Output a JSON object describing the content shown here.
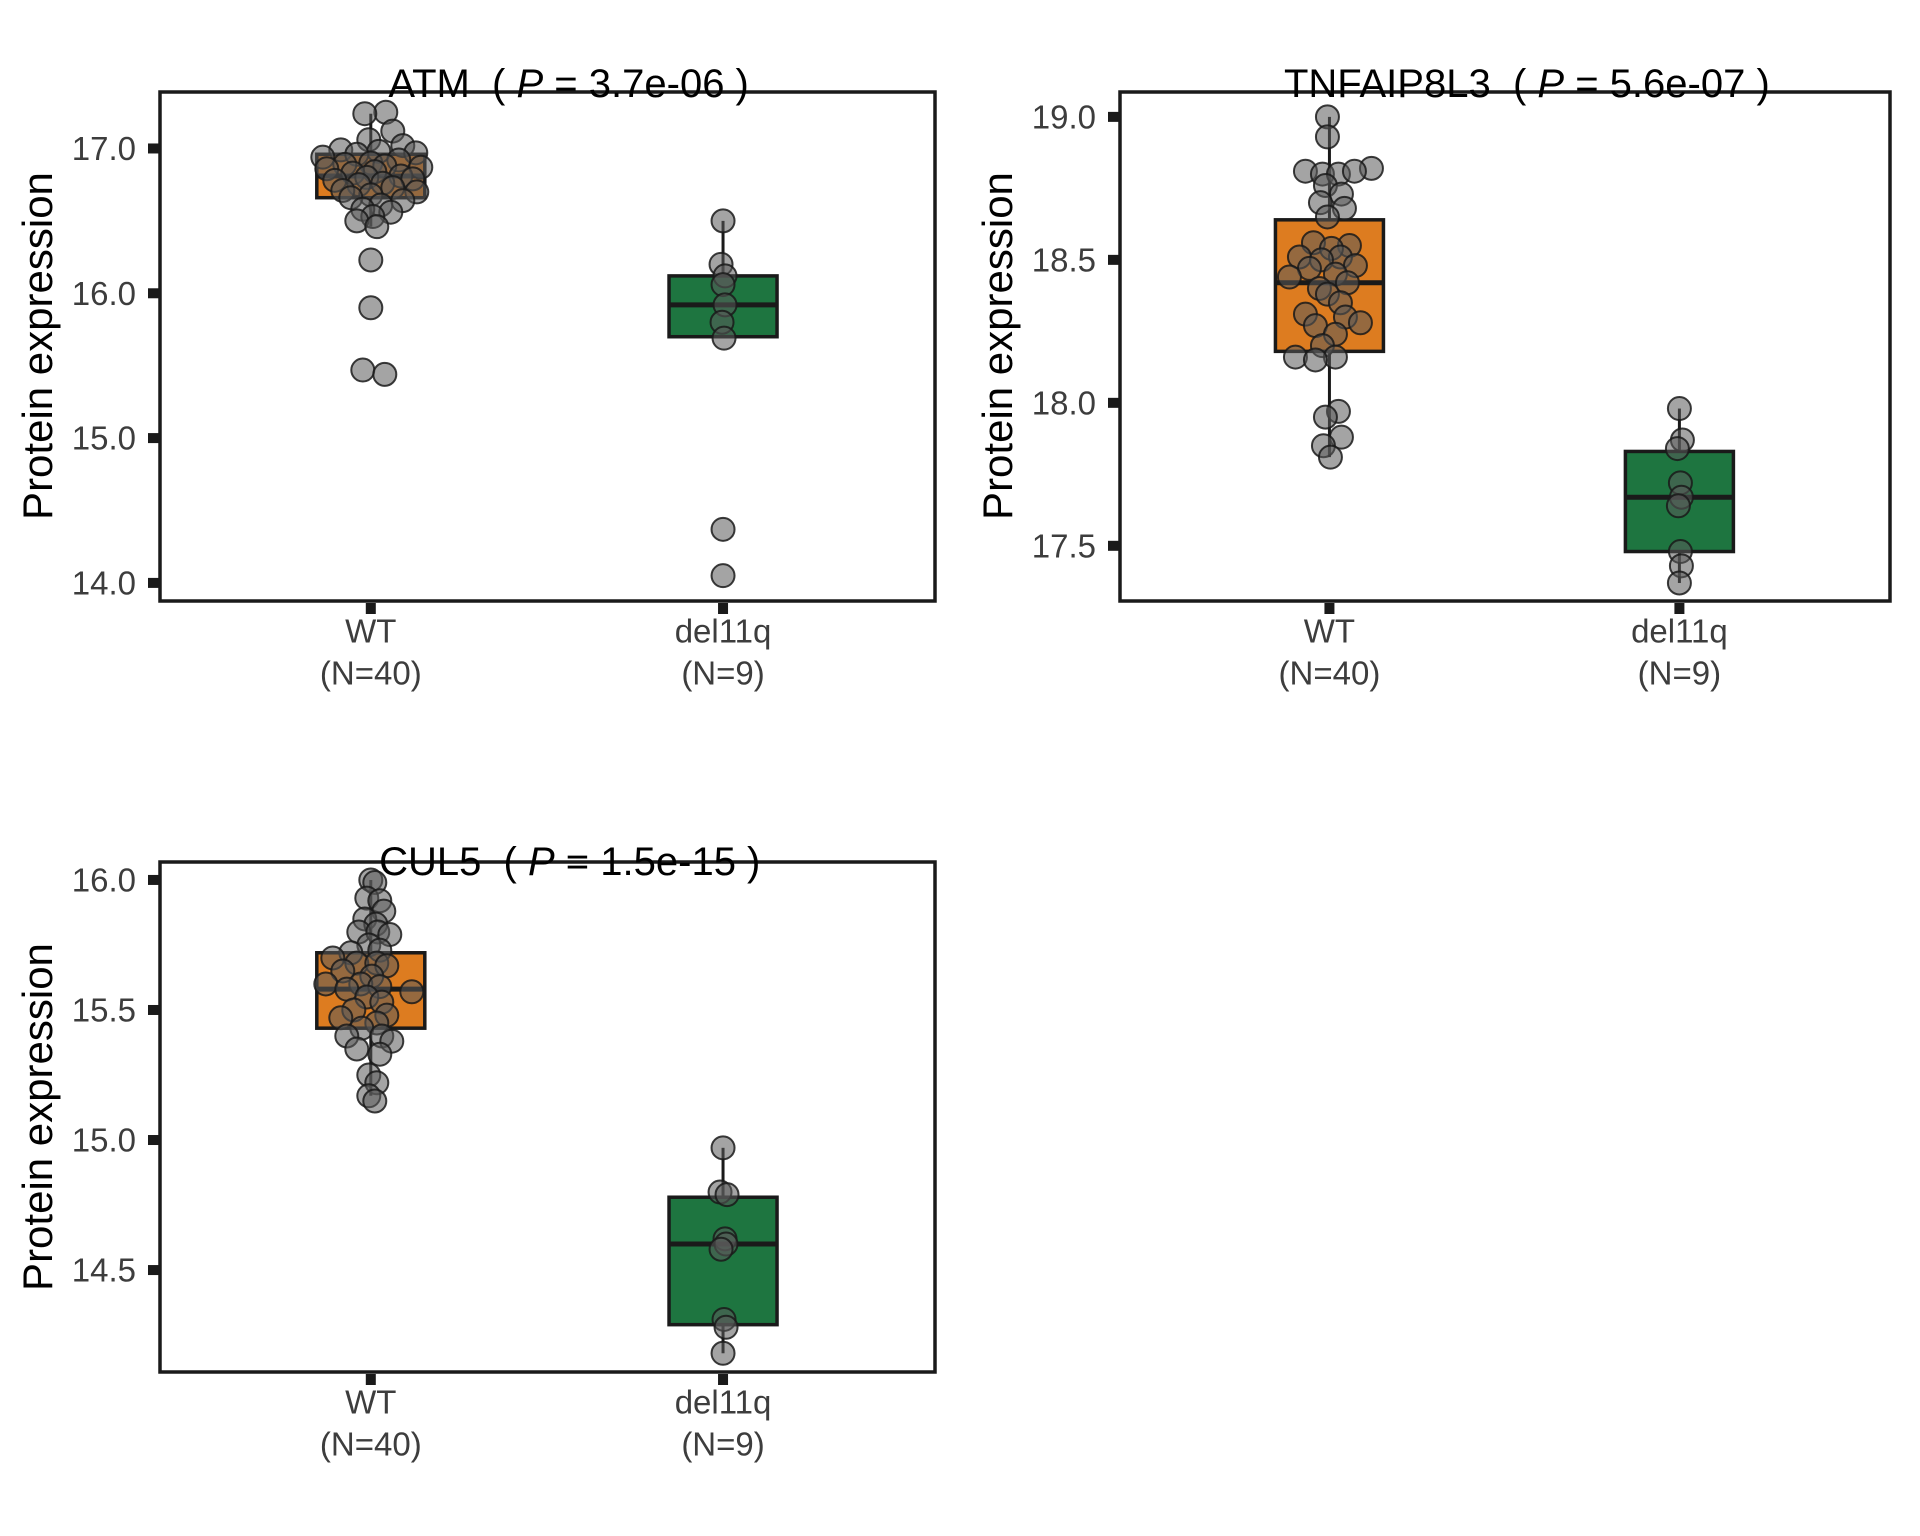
{
  "figure": {
    "background": "#FFFFFF"
  },
  "palette": {
    "wt_box": "#DD7C20",
    "del11q_box": "#1E7540",
    "box_stroke": "#1A1A1A",
    "median_stroke": "#1A1A1A",
    "whisker_stroke": "#1A1A1A",
    "point_fill": "#5A5A5A",
    "point_stroke": "#1A1A1A",
    "tick_text": "#3D3D3D",
    "title_text": "#000000",
    "panel_border": "#1A1A1A"
  },
  "chart_data": [
    {
      "type": "box",
      "title": {
        "gene": "ATM",
        "sep": "  ( ",
        "p_symbol": "P",
        "p_rest": " = 3.7e-06 )"
      },
      "ylabel": "Protein expression",
      "ylim": [
        13.875,
        17.39
      ],
      "grid": false,
      "yticks": [
        {
          "value": 17.0,
          "label": "17.0"
        },
        {
          "value": 16.0,
          "label": "16.0"
        },
        {
          "value": 15.0,
          "label": "15.0"
        },
        {
          "value": 14.0,
          "label": "14.0"
        }
      ],
      "groups": [
        {
          "label": "WT",
          "n_label": "(N=40)",
          "color_key": "wt_box",
          "box": {
            "whisker_low": 16.46,
            "q1": 16.66,
            "median": 16.81,
            "q3": 16.96,
            "whisker_high": 17.24
          },
          "points": [
            [
              17.25,
              15
            ],
            [
              17.24,
              -6
            ],
            [
              17.12,
              22
            ],
            [
              17.06,
              -2
            ],
            [
              17.02,
              32
            ],
            [
              16.99,
              -30
            ],
            [
              16.98,
              8
            ],
            [
              16.97,
              45
            ],
            [
              16.96,
              -14
            ],
            [
              16.94,
              -48
            ],
            [
              16.92,
              28
            ],
            [
              16.9,
              0
            ],
            [
              16.89,
              -26
            ],
            [
              16.88,
              14
            ],
            [
              16.87,
              50
            ],
            [
              16.86,
              -44
            ],
            [
              16.84,
              4
            ],
            [
              16.83,
              -18
            ],
            [
              16.81,
              30
            ],
            [
              16.8,
              -4
            ],
            [
              16.79,
              42
            ],
            [
              16.78,
              -36
            ],
            [
              16.76,
              12
            ],
            [
              16.75,
              -12
            ],
            [
              16.73,
              22
            ],
            [
              16.71,
              -28
            ],
            [
              16.7,
              46
            ],
            [
              16.68,
              0
            ],
            [
              16.66,
              -20
            ],
            [
              16.64,
              32
            ],
            [
              16.61,
              10
            ],
            [
              16.58,
              -8
            ],
            [
              16.56,
              20
            ],
            [
              16.53,
              2
            ],
            [
              16.5,
              -14
            ],
            [
              16.46,
              6
            ],
            [
              16.23,
              0
            ],
            [
              15.9,
              0
            ],
            [
              15.47,
              -8
            ],
            [
              15.44,
              14
            ]
          ]
        },
        {
          "label": "del11q",
          "n_label": "(N=9)",
          "color_key": "del11q_box",
          "box": {
            "whisker_low": 15.69,
            "q1": 15.7,
            "median": 15.92,
            "q3": 16.12,
            "whisker_high": 16.5
          },
          "points": [
            [
              16.5,
              0
            ],
            [
              16.2,
              -2
            ],
            [
              16.12,
              2
            ],
            [
              16.06,
              0
            ],
            [
              15.92,
              2
            ],
            [
              15.8,
              -1
            ],
            [
              15.69,
              1
            ],
            [
              14.37,
              0
            ],
            [
              14.05,
              0
            ]
          ]
        }
      ]
    },
    {
      "type": "box",
      "title": {
        "gene": "TNFAIP8L3",
        "sep": "  ( ",
        "p_symbol": "P",
        "p_rest": " = 5.6e-07 )"
      },
      "ylabel": "Protein expression",
      "ylim": [
        17.307,
        19.087
      ],
      "grid": false,
      "yticks": [
        {
          "value": 19.0,
          "label": "19.0"
        },
        {
          "value": 18.5,
          "label": "18.5"
        },
        {
          "value": 18.0,
          "label": "18.0"
        },
        {
          "value": 17.5,
          "label": "17.5"
        }
      ],
      "groups": [
        {
          "label": "WT",
          "n_label": "(N=40)",
          "color_key": "wt_box",
          "box": {
            "whisker_low": 17.81,
            "q1": 18.18,
            "median": 18.42,
            "q3": 18.64,
            "whisker_high": 19.0
          },
          "points": [
            [
              19.0,
              -2
            ],
            [
              18.93,
              -2
            ],
            [
              18.82,
              42
            ],
            [
              18.81,
              -24
            ],
            [
              18.8,
              -7
            ],
            [
              18.8,
              9
            ],
            [
              18.81,
              25
            ],
            [
              18.76,
              -4
            ],
            [
              18.73,
              12
            ],
            [
              18.7,
              -9
            ],
            [
              18.68,
              15
            ],
            [
              18.65,
              -2
            ],
            [
              18.56,
              -16
            ],
            [
              18.55,
              20
            ],
            [
              18.54,
              2
            ],
            [
              18.51,
              -30
            ],
            [
              18.51,
              11
            ],
            [
              18.5,
              -8
            ],
            [
              18.48,
              26
            ],
            [
              18.47,
              -20
            ],
            [
              18.45,
              6
            ],
            [
              18.44,
              -40
            ],
            [
              18.42,
              18
            ],
            [
              18.4,
              -10
            ],
            [
              18.38,
              -2
            ],
            [
              18.35,
              11
            ],
            [
              18.31,
              -24
            ],
            [
              18.3,
              16
            ],
            [
              18.28,
              31
            ],
            [
              18.27,
              -14
            ],
            [
              18.24,
              6
            ],
            [
              18.2,
              -7
            ],
            [
              18.16,
              -34
            ],
            [
              18.16,
              6
            ],
            [
              18.15,
              -14
            ],
            [
              17.97,
              9
            ],
            [
              17.95,
              -4
            ],
            [
              17.88,
              12
            ],
            [
              17.85,
              -6
            ],
            [
              17.81,
              1
            ]
          ]
        },
        {
          "label": "del11q",
          "n_label": "(N=9)",
          "color_key": "del11q_box",
          "box": {
            "whisker_low": 17.37,
            "q1": 17.48,
            "median": 17.67,
            "q3": 17.83,
            "whisker_high": 17.98
          },
          "points": [
            [
              17.98,
              0
            ],
            [
              17.87,
              3
            ],
            [
              17.84,
              -2
            ],
            [
              17.72,
              1
            ],
            [
              17.67,
              2
            ],
            [
              17.64,
              -1
            ],
            [
              17.48,
              1
            ],
            [
              17.43,
              2
            ],
            [
              17.37,
              0
            ]
          ]
        }
      ]
    },
    {
      "type": "box",
      "title": {
        "gene": "CUL5",
        "sep": "  ( ",
        "p_symbol": "P",
        "p_rest": " = 1.5e-15 )"
      },
      "ylabel": "Protein expression",
      "ylim": [
        14.108,
        16.069
      ],
      "grid": false,
      "yticks": [
        {
          "value": 16.0,
          "label": "16.0"
        },
        {
          "value": 15.5,
          "label": "15.5"
        },
        {
          "value": 15.0,
          "label": "15.0"
        },
        {
          "value": 14.5,
          "label": "14.5"
        }
      ],
      "groups": [
        {
          "label": "WT",
          "n_label": "(N=40)",
          "color_key": "wt_box",
          "box": {
            "whisker_low": 15.17,
            "q1": 15.43,
            "median": 15.58,
            "q3": 15.72,
            "whisker_high": 16.0
          },
          "points": [
            [
              16.0,
              0
            ],
            [
              15.99,
              4
            ],
            [
              15.93,
              -4
            ],
            [
              15.92,
              9
            ],
            [
              15.88,
              13
            ],
            [
              15.85,
              -6
            ],
            [
              15.83,
              5
            ],
            [
              15.8,
              -12
            ],
            [
              15.8,
              7
            ],
            [
              15.79,
              19
            ],
            [
              15.75,
              -2
            ],
            [
              15.73,
              9
            ],
            [
              15.72,
              -20
            ],
            [
              15.7,
              -38
            ],
            [
              15.68,
              -14
            ],
            [
              15.68,
              6
            ],
            [
              15.67,
              16
            ],
            [
              15.65,
              -28
            ],
            [
              15.63,
              1
            ],
            [
              15.6,
              -45
            ],
            [
              15.6,
              -10
            ],
            [
              15.59,
              9
            ],
            [
              15.58,
              -24
            ],
            [
              15.57,
              41
            ],
            [
              15.55,
              -4
            ],
            [
              15.53,
              11
            ],
            [
              15.5,
              -17
            ],
            [
              15.48,
              16
            ],
            [
              15.47,
              -30
            ],
            [
              15.45,
              6
            ],
            [
              15.43,
              -9
            ],
            [
              15.4,
              -24
            ],
            [
              15.4,
              11
            ],
            [
              15.38,
              21
            ],
            [
              15.35,
              -14
            ],
            [
              15.33,
              9
            ],
            [
              15.25,
              -2
            ],
            [
              15.22,
              6
            ],
            [
              15.17,
              -2
            ],
            [
              15.15,
              4
            ]
          ]
        },
        {
          "label": "del11q",
          "n_label": "(N=9)",
          "color_key": "del11q_box",
          "box": {
            "whisker_low": 14.18,
            "q1": 14.29,
            "median": 14.6,
            "q3": 14.78,
            "whisker_high": 14.97
          },
          "points": [
            [
              14.97,
              0
            ],
            [
              14.8,
              -3
            ],
            [
              14.79,
              4
            ],
            [
              14.62,
              2
            ],
            [
              14.6,
              3
            ],
            [
              14.58,
              -2
            ],
            [
              14.31,
              1
            ],
            [
              14.28,
              3
            ],
            [
              14.18,
              0
            ]
          ]
        }
      ]
    }
  ]
}
